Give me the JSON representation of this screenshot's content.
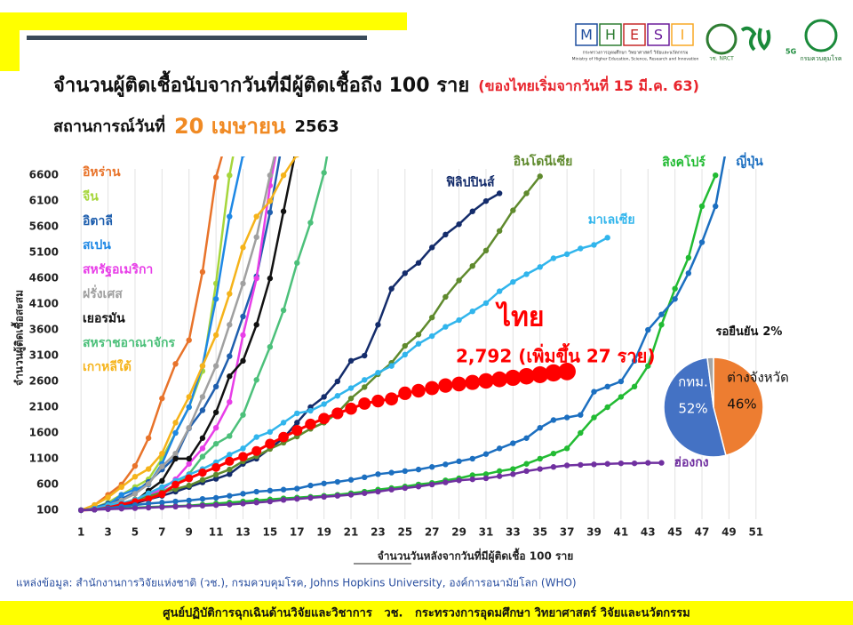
{
  "header": {
    "title": "จำนวนผู้ติดเชื้อนับจากวันที่มีผู้ติดเชื้อถึง 100 ราย",
    "subtitle": "(ของไทยเริ่มจากวันที่ 15 มี.ค. 63)",
    "status_label": "สถานการณ์วันที่",
    "status_date": "20 เมษายน",
    "status_year": "2563",
    "logo_letters": [
      "M",
      "H",
      "E",
      "S",
      "I"
    ],
    "logo_caption_th": "กระทรวงการอุดมศึกษา วิทยาศาสตร์ วิจัยและนวัตกรรม",
    "logo_caption_en": "Ministry of Higher Education, Science, Research and Innovation",
    "nrct": "วช. NRCT",
    "fiveg": "5G",
    "ddc": "กรมควบคุมโรค"
  },
  "source": "แหล่งข้อมูล: สำนักงานการวิจัยแห่งชาติ (วช.), กรมควบคุมโรค, Johns Hopkins University, องค์การอนามัยโลก (WHO)",
  "footer": "ศูนย์ปฏิบัติการฉุกเฉินด้านวิจัยและวิชาการ   วช.   กระทรวงการอุดมศึกษา วิทยาศาสตร์ วิจัยและนวัตกรรม",
  "chart_data": [
    {
      "type": "line",
      "ylabel": "จำนวนผู้ติดเชื้อสะสม",
      "xlabel": "จำนวนวันหลังจากวันที่มีผู้ติดเชื้อ 100 ราย",
      "annotation": "2,792 (เพิ่มขึ้น 27 ราย)",
      "xlim": [
        0,
        52
      ],
      "ylim": [
        0,
        6800
      ],
      "grid": "x",
      "xticks": [
        1,
        3,
        5,
        7,
        9,
        11,
        13,
        15,
        17,
        19,
        21,
        23,
        25,
        27,
        29,
        31,
        33,
        35,
        37,
        39,
        41,
        43,
        45,
        47,
        49,
        51
      ],
      "yticks": [
        100,
        600,
        1100,
        1600,
        2100,
        2600,
        3100,
        3600,
        4100,
        4600,
        5100,
        5600,
        6100,
        6600
      ],
      "x": [
        1,
        2,
        3,
        4,
        5,
        6,
        7,
        8,
        9,
        10,
        11,
        12,
        13,
        14,
        15,
        16,
        17,
        18,
        19,
        20,
        21,
        22,
        23,
        24,
        25,
        26,
        27,
        28,
        29,
        30,
        31,
        32,
        33,
        34,
        35,
        36,
        37,
        38,
        39,
        40,
        41,
        42,
        43,
        44,
        45,
        46,
        47,
        48,
        49
      ],
      "series": [
        {
          "name": "อิหร่าน",
          "color": "#e8732a",
          "values": [
            100,
            200,
            400,
            600,
            960,
            1500,
            2270,
            2940,
            3400,
            4725,
            6560,
            7500,
            null,
            null,
            null,
            null,
            null,
            null,
            null,
            null,
            null,
            null,
            null,
            null,
            null,
            null,
            null,
            null,
            null,
            null,
            null,
            null,
            null,
            null,
            null,
            null,
            null,
            null,
            null,
            null,
            null,
            null,
            null,
            null,
            null,
            null,
            null,
            null,
            null
          ]
        },
        {
          "name": "จีน",
          "color": "#a6d63b",
          "values": [
            100,
            150,
            250,
            400,
            550,
            700,
            1100,
            1600,
            2100,
            2800,
            4500,
            6600,
            8000,
            null,
            null,
            null,
            null,
            null,
            null,
            null,
            null,
            null,
            null,
            null,
            null,
            null,
            null,
            null,
            null,
            null,
            null,
            null,
            null,
            null,
            null,
            null,
            null,
            null,
            null,
            null,
            null,
            null,
            null,
            null,
            null,
            null,
            null,
            null,
            null
          ]
        },
        {
          "name": "อิตาลี",
          "color": "#1f5fae",
          "values": [
            100,
            150,
            230,
            320,
            450,
            650,
            890,
            1130,
            1690,
            2040,
            2500,
            3090,
            3860,
            4640,
            5880,
            7380,
            null,
            null,
            null,
            null,
            null,
            null,
            null,
            null,
            null,
            null,
            null,
            null,
            null,
            null,
            null,
            null,
            null,
            null,
            null,
            null,
            null,
            null,
            null,
            null,
            null,
            null,
            null,
            null,
            null,
            null,
            null,
            null,
            null
          ]
        },
        {
          "name": "สเปน",
          "color": "#1e88e5",
          "values": [
            100,
            150,
            200,
            400,
            500,
            600,
            1000,
            1600,
            2100,
            2900,
            4200,
            5800,
            7000,
            null,
            null,
            null,
            null,
            null,
            null,
            null,
            null,
            null,
            null,
            null,
            null,
            null,
            null,
            null,
            null,
            null,
            null,
            null,
            null,
            null,
            null,
            null,
            null,
            null,
            null,
            null,
            null,
            null,
            null,
            null,
            null,
            null,
            null,
            null,
            null
          ]
        },
        {
          "name": "สหรัฐอเมริกา",
          "color": "#e83ee8",
          "values": [
            100,
            130,
            160,
            220,
            300,
            400,
            500,
            700,
            1000,
            1300,
            1700,
            2200,
            3500,
            4600,
            6400,
            7800,
            null,
            null,
            null,
            null,
            null,
            null,
            null,
            null,
            null,
            null,
            null,
            null,
            null,
            null,
            null,
            null,
            null,
            null,
            null,
            null,
            null,
            null,
            null,
            null,
            null,
            null,
            null,
            null,
            null,
            null,
            null,
            null,
            null
          ]
        },
        {
          "name": "ฝรั่งเศส",
          "color": "#a0a0a0",
          "values": [
            100,
            130,
            190,
            290,
            420,
            610,
            950,
            1200,
            1700,
            2300,
            2900,
            3700,
            4500,
            5400,
            6600,
            7700,
            null,
            null,
            null,
            null,
            null,
            null,
            null,
            null,
            null,
            null,
            null,
            null,
            null,
            null,
            null,
            null,
            null,
            null,
            null,
            null,
            null,
            null,
            null,
            null,
            null,
            null,
            null,
            null,
            null,
            null,
            null,
            null,
            null
          ]
        },
        {
          "name": "เยอรมัน",
          "color": "#111111",
          "values": [
            100,
            130,
            160,
            200,
            270,
            480,
            670,
            1100,
            1100,
            1500,
            2000,
            2700,
            3000,
            3700,
            4600,
            5900,
            7200,
            null,
            null,
            null,
            null,
            null,
            null,
            null,
            null,
            null,
            null,
            null,
            null,
            null,
            null,
            null,
            null,
            null,
            null,
            null,
            null,
            null,
            null,
            null,
            null,
            null,
            null,
            null,
            null,
            null,
            null,
            null,
            null
          ]
        },
        {
          "name": "สหราชอาณาจักร",
          "color": "#4cc07a",
          "values": [
            100,
            120,
            160,
            210,
            270,
            320,
            460,
            590,
            800,
            1140,
            1390,
            1540,
            1950,
            2630,
            3270,
            3980,
            4900,
            5680,
            6650,
            8100,
            null,
            null,
            null,
            null,
            null,
            null,
            null,
            null,
            null,
            null,
            null,
            null,
            null,
            null,
            null,
            null,
            null,
            null,
            null,
            null,
            null,
            null,
            null,
            null,
            null,
            null,
            null,
            null,
            null
          ]
        },
        {
          "name": "เกาหลีใต้",
          "color": "#f5b31a",
          "values": [
            100,
            200,
            350,
            550,
            750,
            900,
            1200,
            1800,
            2300,
            2900,
            3500,
            4300,
            5200,
            5800,
            6100,
            6600,
            7000,
            null,
            null,
            null,
            null,
            null,
            null,
            null,
            null,
            null,
            null,
            null,
            null,
            null,
            null,
            null,
            null,
            null,
            null,
            null,
            null,
            null,
            null,
            null,
            null,
            null,
            null,
            null,
            null,
            null,
            null,
            null,
            null
          ]
        },
        {
          "name": "ฟิลิปปินส์",
          "color": "#142c6b",
          "values": [
            100,
            130,
            150,
            190,
            230,
            310,
            380,
            460,
            550,
            640,
            710,
            800,
            1000,
            1100,
            1300,
            1500,
            1800,
            2100,
            2300,
            2600,
            3000,
            3100,
            3700,
            4400,
            4700,
            4900,
            5200,
            5450,
            5650,
            5900,
            6100,
            6250,
            null,
            null,
            null,
            null,
            null,
            null,
            null,
            null,
            null,
            null,
            null,
            null,
            null,
            null,
            null,
            null,
            null
          ]
        },
        {
          "name": "อินโดนีเซีย",
          "color": "#5f8a2d",
          "values": [
            100,
            130,
            170,
            230,
            310,
            370,
            450,
            510,
            580,
            690,
            790,
            890,
            1050,
            1150,
            1290,
            1410,
            1530,
            1680,
            1800,
            1990,
            2270,
            2490,
            2740,
            2960,
            3290,
            3510,
            3840,
            4240,
            4560,
            4840,
            5140,
            5520,
            5920,
            6250,
            6580,
            null,
            null,
            null,
            null,
            null,
            null,
            null,
            null,
            null,
            null,
            null,
            null,
            null,
            null
          ]
        },
        {
          "name": "มาเลเซีย",
          "color": "#31b5ec",
          "values": [
            100,
            130,
            200,
            240,
            300,
            430,
            550,
            670,
            790,
            900,
            1030,
            1180,
            1300,
            1520,
            1620,
            1800,
            1980,
            2030,
            2160,
            2320,
            2470,
            2630,
            2770,
            2900,
            3120,
            3330,
            3480,
            3660,
            3790,
            3960,
            4120,
            4350,
            4530,
            4680,
            4820,
            4990,
            5070,
            5180,
            5250,
            5390,
            null,
            null,
            null,
            null,
            null,
            null,
            null,
            null,
            null
          ]
        },
        {
          "name": "ไทย",
          "color": "#ff0000",
          "values": [
            100,
            110,
            150,
            210,
            270,
            320,
            410,
            600,
            720,
            830,
            930,
            1050,
            1140,
            1250,
            1390,
            1520,
            1650,
            1770,
            1880,
            1980,
            2070,
            2170,
            2220,
            2260,
            2370,
            2420,
            2470,
            2520,
            2550,
            2580,
            2610,
            2640,
            2670,
            2700,
            2730,
            2765,
            2792,
            null,
            null,
            null,
            null,
            null,
            null,
            null,
            null,
            null,
            null,
            null,
            null
          ]
        },
        {
          "name": "สิงคโปร์",
          "color": "#22bb33",
          "values": [
            100,
            110,
            130,
            140,
            150,
            160,
            170,
            180,
            190,
            210,
            230,
            250,
            270,
            290,
            310,
            330,
            345,
            360,
            380,
            400,
            430,
            460,
            500,
            530,
            560,
            600,
            630,
            680,
            720,
            780,
            800,
            860,
            900,
            1000,
            1100,
            1200,
            1300,
            1600,
            1900,
            2100,
            2300,
            2500,
            2900,
            3700,
            4400,
            5000,
            6000,
            6600,
            null
          ]
        },
        {
          "name": "ญี่ปุ่น",
          "color": "#1c6fc0",
          "values": [
            100,
            110,
            140,
            170,
            200,
            230,
            250,
            270,
            290,
            320,
            340,
            380,
            420,
            460,
            480,
            500,
            520,
            580,
            620,
            650,
            690,
            740,
            800,
            830,
            860,
            890,
            940,
            990,
            1050,
            1100,
            1190,
            1300,
            1400,
            1500,
            1700,
            1850,
            1900,
            1950,
            2400,
            2500,
            2600,
            3000,
            3600,
            3900,
            4200,
            4700,
            5300,
            6000,
            7400
          ]
        },
        {
          "name": "ฮ่องกง",
          "color": "#7030a0",
          "values": [
            100,
            110,
            120,
            130,
            140,
            150,
            160,
            170,
            180,
            190,
            200,
            210,
            230,
            250,
            270,
            300,
            320,
            340,
            360,
            380,
            400,
            430,
            460,
            500,
            530,
            560,
            600,
            640,
            680,
            700,
            720,
            760,
            800,
            860,
            900,
            940,
            970,
            980,
            990,
            1000,
            1010,
            1010,
            1020,
            1020,
            null,
            null,
            null,
            null,
            null
          ]
        }
      ]
    },
    {
      "type": "pie",
      "categories": [
        "กทม.",
        "ต่างจังหวัด",
        "รอยืนยัน"
      ],
      "values": [
        52,
        46,
        2
      ],
      "value_labels": [
        "52%",
        "46%",
        "2%"
      ],
      "colors": [
        "#4472c4",
        "#ed7d31",
        "#a5a5a5"
      ]
    }
  ]
}
